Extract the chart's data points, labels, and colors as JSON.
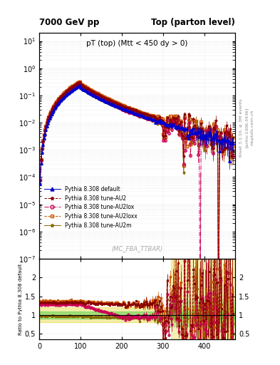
{
  "title_left": "7000 GeV pp",
  "title_right": "Top (parton level)",
  "plot_title": "pT (top) (Mtt < 450 dy > 0)",
  "ylabel_ratio": "Ratio to Pythia 8.308 default",
  "watermark": "(MC_FBA_TTBAR)",
  "right_label1": "Rivet 3.1.10, ≥ 3M events",
  "right_label2": "[arXiv:1306.3436]",
  "right_label3": "mcplots.cern.ch",
  "xlim": [
    0,
    475
  ],
  "ylim_main": [
    1e-07,
    20
  ],
  "ylim_ratio": [
    0.35,
    2.5
  ],
  "ratio_yticks": [
    0.5,
    1.0,
    1.5,
    2.0
  ],
  "colors": {
    "default": "#0000cc",
    "AU2": "#880000",
    "AU2lox": "#cc0055",
    "AU2loxx": "#cc5500",
    "AU2m": "#886600"
  },
  "ratio_band_green": "#44cc44",
  "ratio_band_yellow": "#ddcc00",
  "legend_labels": [
    "Pythia 8.308 default",
    "Pythia 8.308 tune-AU2",
    "Pythia 8.308 tune-AU2lox",
    "Pythia 8.308 tune-AU2loxx",
    "Pythia 8.308 tune-AU2m"
  ]
}
